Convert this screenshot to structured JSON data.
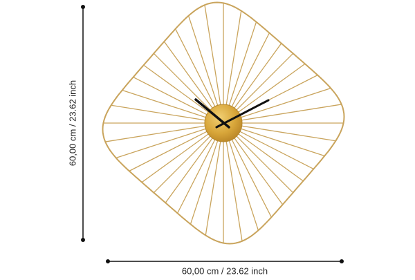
{
  "dimensions": {
    "height": "60,00 cm / 23.62 inch",
    "width": "60,00 cm / 23.62 inch"
  }
}
